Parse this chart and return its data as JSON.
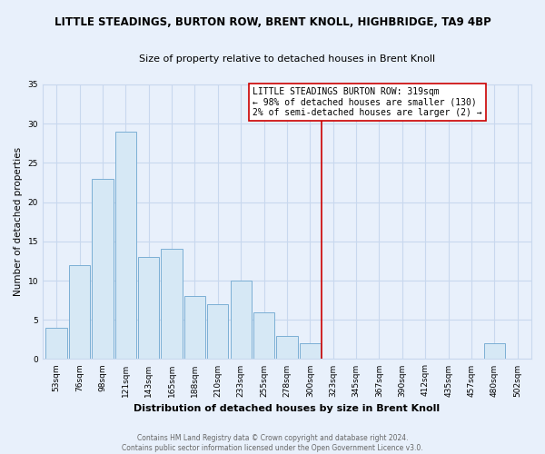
{
  "title": "LITTLE STEADINGS, BURTON ROW, BRENT KNOLL, HIGHBRIDGE, TA9 4BP",
  "subtitle": "Size of property relative to detached houses in Brent Knoll",
  "xlabel": "Distribution of detached houses by size in Brent Knoll",
  "ylabel": "Number of detached properties",
  "bar_labels": [
    "53sqm",
    "76sqm",
    "98sqm",
    "121sqm",
    "143sqm",
    "165sqm",
    "188sqm",
    "210sqm",
    "233sqm",
    "255sqm",
    "278sqm",
    "300sqm",
    "323sqm",
    "345sqm",
    "367sqm",
    "390sqm",
    "412sqm",
    "435sqm",
    "457sqm",
    "480sqm",
    "502sqm"
  ],
  "bar_values": [
    4,
    12,
    23,
    29,
    13,
    14,
    8,
    7,
    10,
    6,
    3,
    2,
    0,
    0,
    0,
    0,
    0,
    0,
    0,
    2,
    0
  ],
  "bar_color": "#d6e8f5",
  "bar_edge_color": "#7bafd4",
  "vline_x_index": 12,
  "vline_color": "#cc0000",
  "ylim": [
    0,
    35
  ],
  "yticks": [
    0,
    5,
    10,
    15,
    20,
    25,
    30,
    35
  ],
  "annotation_line1": "LITTLE STEADINGS BURTON ROW: 319sqm",
  "annotation_line2": "← 98% of detached houses are smaller (130)",
  "annotation_line3": "2% of semi-detached houses are larger (2) →",
  "footnote1": "Contains HM Land Registry data © Crown copyright and database right 2024.",
  "footnote2": "Contains public sector information licensed under the Open Government Licence v3.0.",
  "background_color": "#e8f0fb",
  "plot_bg_color": "#e8f0fb",
  "grid_color": "#c8d8ee"
}
